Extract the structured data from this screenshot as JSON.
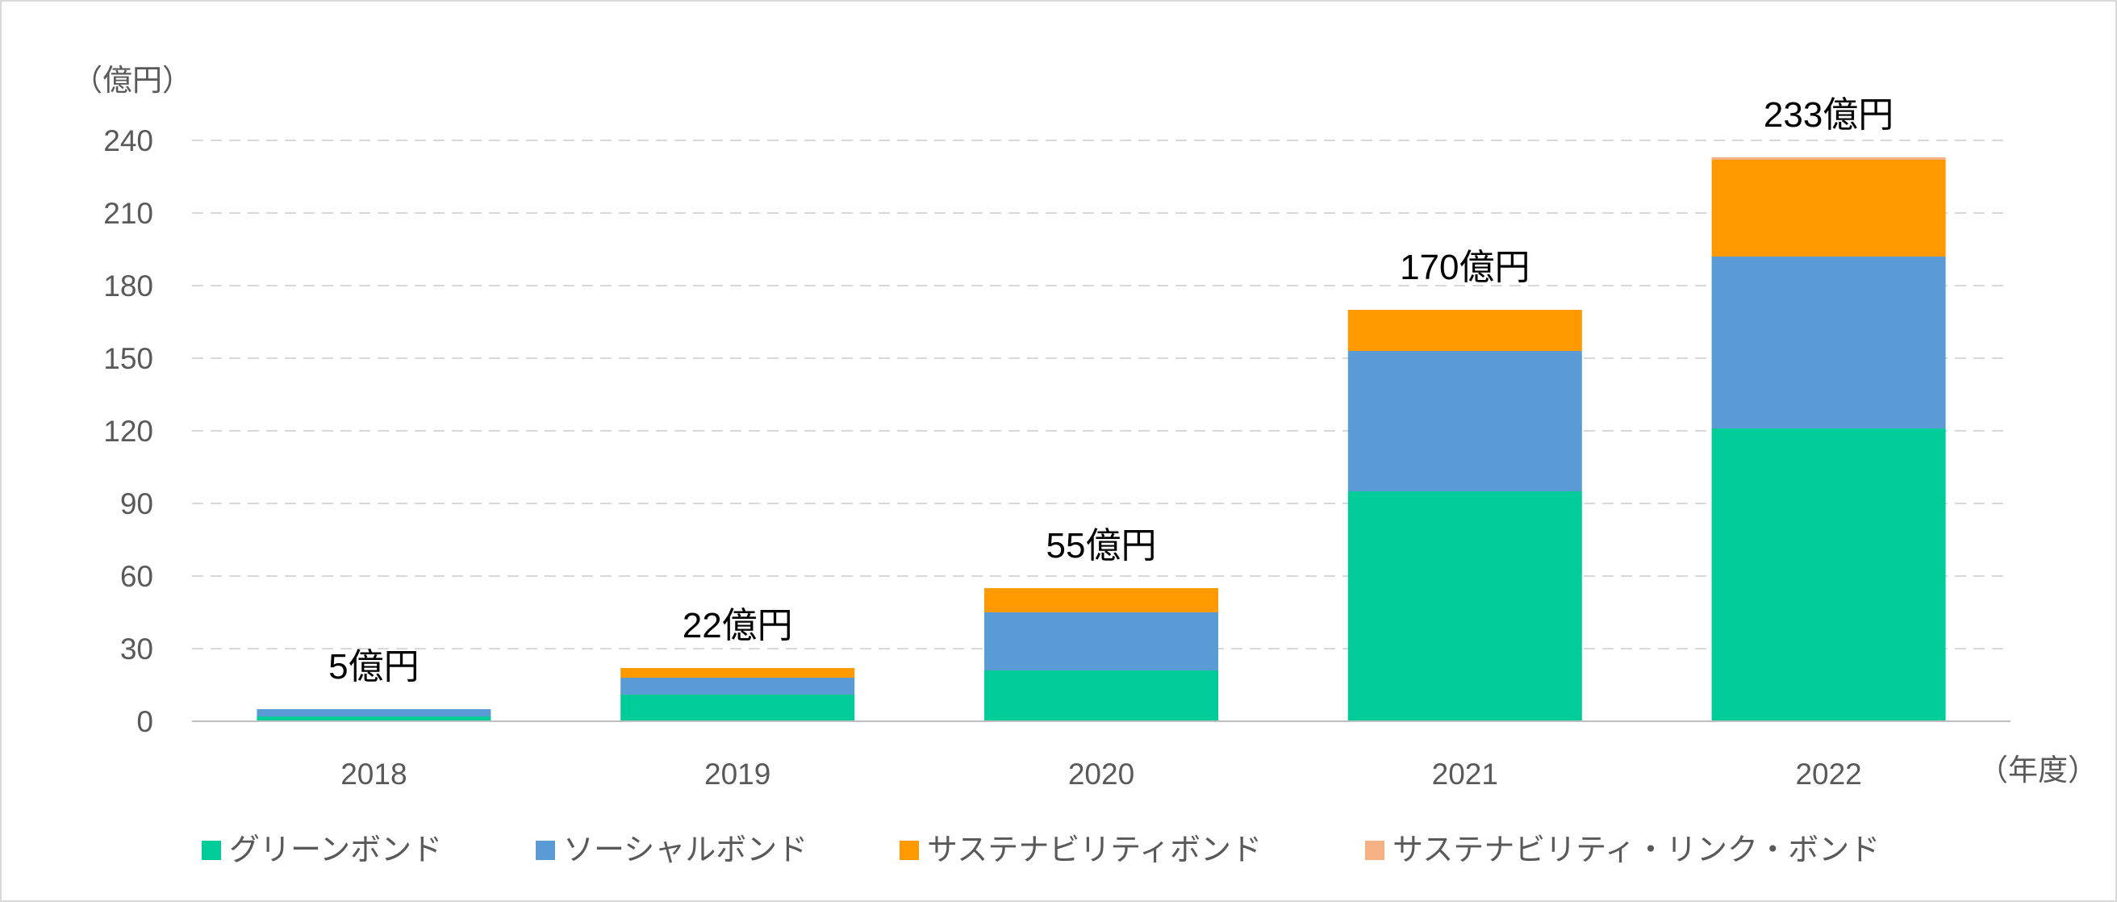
{
  "chart_data": {
    "type": "bar",
    "stacked": true,
    "categories": [
      "2018",
      "2019",
      "2020",
      "2021",
      "2022"
    ],
    "series": [
      {
        "name": "グリーンボンド",
        "color": "#00cc99",
        "values": [
          2,
          11,
          21,
          95,
          121
        ]
      },
      {
        "name": "ソーシャルボンド",
        "color": "#5b9bd5",
        "values": [
          3,
          7,
          24,
          58,
          71
        ]
      },
      {
        "name": "サステナビリティボンド",
        "color": "#ff9900",
        "values": [
          0,
          4,
          10,
          17,
          40
        ]
      },
      {
        "name": "サステナビリティ・リンク・ボンド",
        "color": "#f4b183",
        "values": [
          0,
          0,
          0,
          0,
          1
        ]
      }
    ],
    "totals": [
      "5億円",
      "22億円",
      "55億円",
      "170億円",
      "233億円"
    ],
    "ylabel": "（億円）",
    "xlabel": "（年度）",
    "ylim": [
      0,
      240
    ],
    "yticks": [
      0,
      30,
      60,
      90,
      120,
      150,
      180,
      210,
      240
    ],
    "grid": true,
    "legend": "bottom"
  }
}
